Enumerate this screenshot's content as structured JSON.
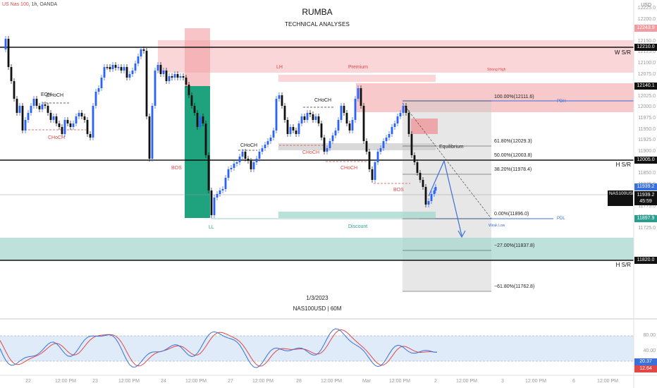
{
  "header": {
    "symbol_line_ticker": "US Nas 100",
    "symbol_line_rest": ", 1h, OANDA",
    "title": "RUMBA",
    "subtitle": "TECHNICAL ANALYSES",
    "currency": "USD"
  },
  "footer": {
    "date": "1/3/2023",
    "instrument": "NAS100USD | 60M"
  },
  "levels": {
    "ws_r": "W S/R",
    "hs_r_upper": "H S/R",
    "hs_r_lower": "H S/R"
  },
  "annotations": {
    "eqh": "EQH",
    "choch_1": "CHoCH",
    "choch_red_1": "CHoCH",
    "bos_1": "BOS",
    "choch_2": "CHoCH",
    "choch_3": "CHoCH",
    "choch_red_2": "CHoCH",
    "choch_red_3": "CHoCH",
    "lh": "LH",
    "premium": "Premium",
    "strong_high": "Strong High",
    "equilibrium": "Equilibrium",
    "discount": "Discount",
    "ll": "LL",
    "weak_low": "Weak Low",
    "bos_2": "BOS",
    "pdh": "PDH",
    "pdl": "PDL"
  },
  "fib": {
    "f100": "100.00%(12111.6)",
    "f618": "61.80%(12029.3)",
    "f50": "50.00%(12003.8)",
    "f382": "38.20%(11978.4)",
    "f0": "0.00%(11896.0)",
    "fm27": "−27.00%(11837.8)",
    "fm618": "−61.80%(11762.8)"
  },
  "price_axis": {
    "ticks": [
      "12225.0",
      "12200.0",
      "12175.0",
      "12150.0",
      "12125.0",
      "12100.0",
      "12075.0",
      "12050.0",
      "12025.0",
      "12000.0",
      "11975.0",
      "11950.0",
      "11925.0",
      "11900.0",
      "11875.0",
      "11850.0",
      "11825.0",
      "11800.0",
      "11775.0",
      "11750.0",
      "11725.0"
    ],
    "boxes": {
      "p12243": "12243.9",
      "p12210": "12210.0",
      "p12140": "12140.1",
      "p12005": "12005.0",
      "p11939": "11939.2",
      "p11897": "11897.9",
      "p11820": "11820.0"
    }
  },
  "symbol_box": {
    "name": "NAS100USD",
    "price": "11939.2",
    "countdown": "45:59"
  },
  "oscillator": {
    "ticks": [
      "80.00",
      "40.00"
    ],
    "value_blue": "20.37",
    "value_red": "12.64"
  },
  "time_axis": [
    "22",
    "12:00 PM",
    "23",
    "12:00 PM",
    "24",
    "12:00 PM",
    "27",
    "12:00 PM",
    "28",
    "12:00 PM",
    "Mar",
    "12:00 PM",
    "2",
    "12:00 PM",
    "3",
    "12:00 PM",
    "6",
    "12:00 PM"
  ],
  "colors": {
    "bull_candle": "#2962ff",
    "bear_candle": "#111111",
    "premium_zone": "#f5b5b8",
    "discount_zone": "#a8d8cf",
    "green_box": "#1fa37e",
    "fib_box": "#d9d9d9",
    "stoch_k": "#3a70d8",
    "stoch_d": "#e04848"
  }
}
